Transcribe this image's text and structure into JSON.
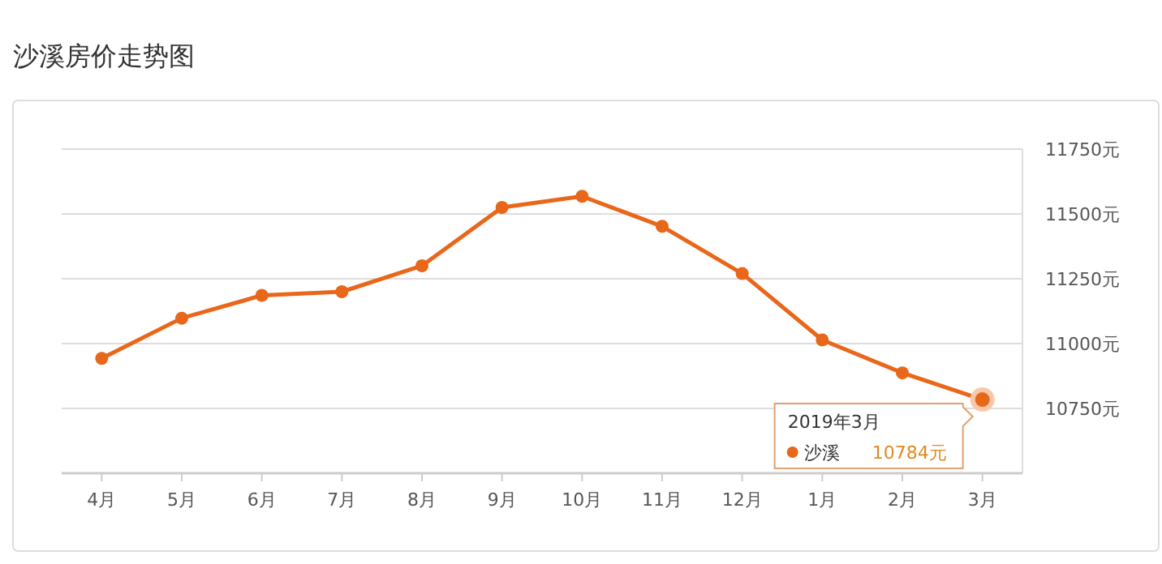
{
  "chart_data": {
    "type": "line",
    "title": "沙溪房价走势图",
    "categories": [
      "4月",
      "5月",
      "6月",
      "7月",
      "8月",
      "9月",
      "10月",
      "11月",
      "12月",
      "1月",
      "2月",
      "3月"
    ],
    "series": [
      {
        "name": "沙溪",
        "color": "#e8671a",
        "values": [
          10943,
          11098,
          11186,
          11200,
          11300,
          11525,
          11568,
          11452,
          11270,
          11014,
          10887,
          10784
        ],
        "value_labels": [
          null,
          null,
          null,
          null,
          null,
          null,
          null,
          null,
          null,
          null,
          null,
          "10784元"
        ]
      }
    ],
    "ylim": [
      10500,
      11750
    ],
    "yticks": [
      {
        "value": 10500,
        "label": null
      },
      {
        "value": 10750,
        "label": "10750元"
      },
      {
        "value": 11000,
        "label": "11000元"
      },
      {
        "value": 11250,
        "label": "11250元"
      },
      {
        "value": 11500,
        "label": "11500元"
      },
      {
        "value": 11750,
        "label": "11750元"
      }
    ],
    "annotations": [
      "2019年3月"
    ],
    "grid": "y",
    "legend": "bottom right",
    "marker": "circle",
    "line_style": "solid"
  }
}
